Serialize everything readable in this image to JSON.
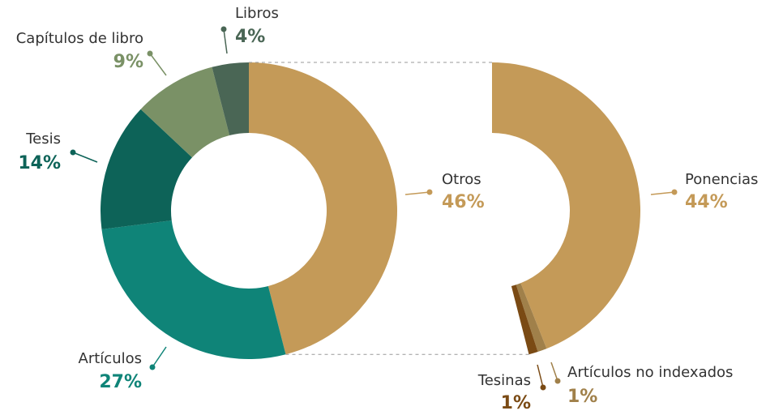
{
  "chart_data": [
    {
      "type": "donut",
      "categories": [
        "Otros",
        "Artículos",
        "Tesis",
        "Capítulos de libro",
        "Libros"
      ],
      "values": [
        46,
        27,
        14,
        9,
        4
      ],
      "value_labels": [
        "46%",
        "27%",
        "14%",
        "9%",
        "4%"
      ],
      "colors": [
        "#c49a58",
        "#0f8478",
        "#0d6358",
        "#7a9166",
        "#4a6655"
      ]
    },
    {
      "type": "donut",
      "categories": [
        "Ponencias",
        "Artículos no indexados",
        "Tesinas"
      ],
      "values": [
        44,
        1,
        1
      ],
      "value_labels": [
        "44%",
        "1%",
        "1%"
      ],
      "colors": [
        "#c49a58",
        "#a0804a",
        "#7a4a14"
      ]
    }
  ]
}
